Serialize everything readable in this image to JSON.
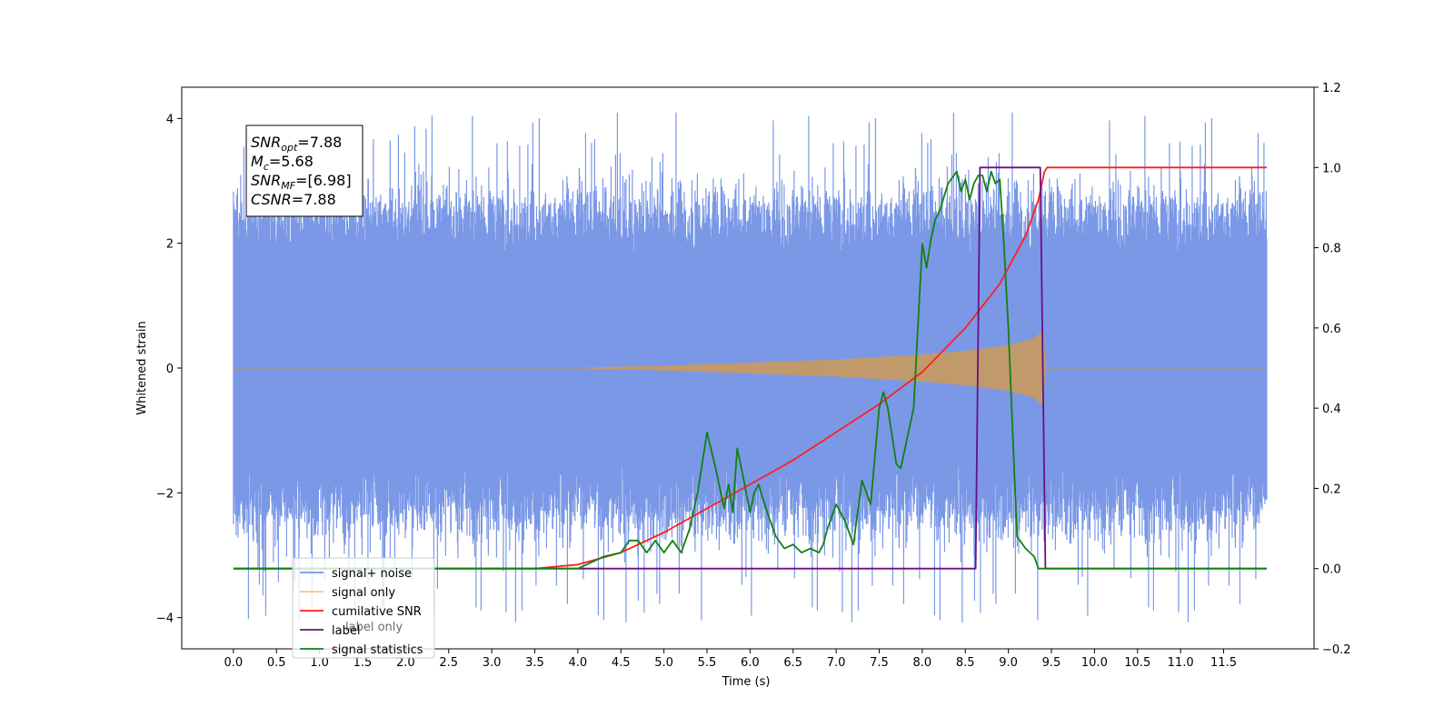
{
  "chart_data": {
    "type": "line",
    "xlabel": "Time (s)",
    "ylabel": "Whitened strain",
    "xlim": [
      -0.6,
      12.55
    ],
    "ylim_left": [
      -4.5,
      4.5
    ],
    "ylim_right": [
      -0.2,
      1.2
    ],
    "x_ticks": [
      "0.0",
      "0.5",
      "1.0",
      "1.5",
      "2.0",
      "2.5",
      "3.0",
      "3.5",
      "4.0",
      "4.5",
      "5.0",
      "5.5",
      "6.0",
      "6.5",
      "7.0",
      "7.5",
      "8.0",
      "8.5",
      "9.0",
      "9.5",
      "10.0",
      "10.5",
      "11.0",
      "11.5"
    ],
    "y_ticks_left": [
      "4",
      "2",
      "0",
      "−2",
      "−4"
    ],
    "y_ticks_right": [
      "1.2",
      "1.0",
      "0.8",
      "0.6",
      "0.4",
      "0.2",
      "0.0",
      "−0.2"
    ],
    "grid": false,
    "legend_position": "lower-left",
    "legend": [
      {
        "label": "signal+ noise",
        "color": "#7492e6"
      },
      {
        "label": "signal only",
        "color": "#ffc56e"
      },
      {
        "label": "cumilative SNR",
        "color": "#ff1f1f"
      },
      {
        "label": "label",
        "color": "#6b0f80"
      },
      {
        "label": "signal statistics",
        "color": "#128012"
      }
    ],
    "hidden_legend_text": "label only",
    "annotation": {
      "lines": [
        {
          "sym": "SNR",
          "sub": "opt",
          "rest": "=7.88"
        },
        {
          "sym": "M",
          "sub": "c",
          "rest": "=5.68"
        },
        {
          "sym": "SNR",
          "sub": "MF",
          "rest": "=[6.98]"
        },
        {
          "sym": "CSNR",
          "sub": "",
          "rest": "=7.88"
        }
      ]
    },
    "series": [
      {
        "name": "signal+ noise",
        "axis": "left",
        "color": "#7492e6",
        "x_range": [
          0.0,
          12.0
        ],
        "envelope": {
          "core": [
            -2.2,
            2.4
          ],
          "outlier_max": 4.1,
          "outlier_min": -4.1
        },
        "description_values": {
          "x": [
            0.0,
            12.0
          ],
          "y_range": [
            -4.1,
            4.1
          ]
        }
      },
      {
        "name": "signal only",
        "axis": "left",
        "color": "#c09a6b",
        "envelope_x": [
          0.0,
          4.0,
          5.0,
          6.0,
          7.0,
          7.5,
          8.0,
          8.5,
          9.0,
          9.3,
          9.4,
          9.43,
          12.0
        ],
        "envelope_amp": [
          0.0,
          0.0,
          0.03,
          0.08,
          0.13,
          0.17,
          0.21,
          0.27,
          0.36,
          0.47,
          0.6,
          0.0,
          0.0
        ]
      },
      {
        "name": "cumilative SNR",
        "axis": "right",
        "color": "#ff1f1f",
        "x": [
          0.0,
          3.5,
          4.0,
          4.5,
          5.0,
          5.5,
          6.0,
          6.5,
          7.0,
          7.5,
          8.0,
          8.5,
          8.9,
          9.2,
          9.35,
          9.42,
          9.45,
          12.0
        ],
        "y": [
          0.0,
          0.0,
          0.01,
          0.04,
          0.09,
          0.15,
          0.21,
          0.27,
          0.34,
          0.41,
          0.49,
          0.6,
          0.71,
          0.83,
          0.92,
          0.99,
          1.0,
          1.0
        ]
      },
      {
        "name": "label",
        "axis": "right",
        "color": "#6b0f80",
        "x": [
          0.0,
          8.62,
          8.67,
          9.37,
          9.43,
          12.0
        ],
        "y": [
          0.0,
          0.0,
          1.0,
          1.0,
          0.0,
          0.0
        ]
      },
      {
        "name": "signal statistics",
        "axis": "right",
        "color": "#128012",
        "x": [
          0.0,
          4.0,
          4.2,
          4.3,
          4.5,
          4.6,
          4.7,
          4.8,
          4.9,
          5.0,
          5.1,
          5.2,
          5.3,
          5.4,
          5.5,
          5.6,
          5.7,
          5.75,
          5.8,
          5.85,
          5.9,
          6.0,
          6.05,
          6.1,
          6.2,
          6.3,
          6.4,
          6.5,
          6.6,
          6.7,
          6.8,
          6.85,
          6.9,
          7.0,
          7.1,
          7.2,
          7.3,
          7.4,
          7.5,
          7.55,
          7.6,
          7.7,
          7.75,
          7.8,
          7.9,
          8.0,
          8.05,
          8.1,
          8.15,
          8.2,
          8.3,
          8.4,
          8.45,
          8.5,
          8.55,
          8.6,
          8.65,
          8.7,
          8.75,
          8.8,
          8.85,
          8.9,
          8.95,
          9.0,
          9.1,
          9.2,
          9.3,
          9.35,
          9.45,
          9.6,
          12.0
        ],
        "y": [
          0.0,
          0.0,
          0.02,
          0.03,
          0.04,
          0.07,
          0.07,
          0.04,
          0.07,
          0.04,
          0.07,
          0.04,
          0.1,
          0.2,
          0.34,
          0.25,
          0.15,
          0.21,
          0.14,
          0.3,
          0.25,
          0.14,
          0.19,
          0.21,
          0.14,
          0.08,
          0.05,
          0.06,
          0.04,
          0.05,
          0.04,
          0.06,
          0.1,
          0.16,
          0.12,
          0.06,
          0.22,
          0.16,
          0.4,
          0.44,
          0.4,
          0.26,
          0.25,
          0.3,
          0.4,
          0.81,
          0.75,
          0.82,
          0.87,
          0.89,
          0.96,
          0.99,
          0.94,
          0.97,
          0.92,
          0.96,
          0.98,
          0.98,
          0.94,
          0.99,
          0.96,
          0.97,
          0.8,
          0.6,
          0.08,
          0.05,
          0.03,
          0.0,
          0.0,
          0.0,
          0.0
        ]
      }
    ]
  }
}
